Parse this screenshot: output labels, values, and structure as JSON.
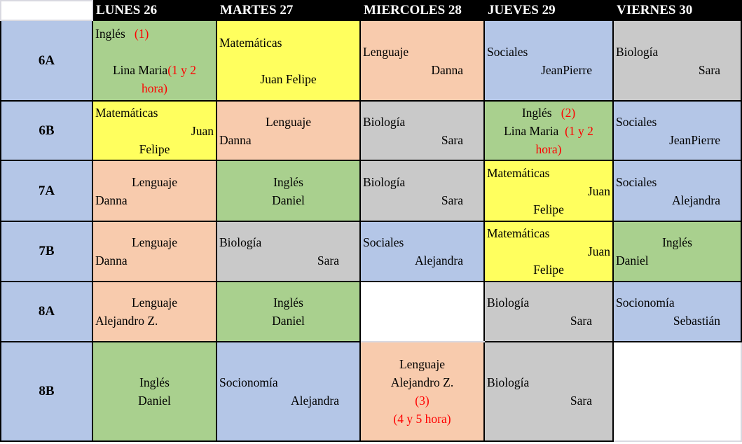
{
  "header": {
    "corner": "",
    "days": [
      "LUNES 26",
      "MARTES 27",
      "MIERCOLES 28",
      "JUEVES 29",
      "VIERNES 30"
    ]
  },
  "palette": {
    "header_bg": "#000000",
    "header_text": "#FFFFFF",
    "group_blue": "#B4C6E7",
    "green": "#A9D08E",
    "yellow": "#FFFF5E",
    "orange": "#F8CBAD",
    "gray": "#C9C9C9",
    "white": "#FFFFFF",
    "annotation_red": "#FF0000",
    "border": "#000000",
    "light_border": "#D9D9E1"
  },
  "subject_colors": {
    "Inglés": "green",
    "Matemáticas": "yellow",
    "Lenguaje": "orange",
    "Sociales": "blue",
    "Socionomía": "blue",
    "Biología": "gray"
  },
  "groups": [
    "6A",
    "6B",
    "7A",
    "7B",
    "8A",
    "8B"
  ],
  "rows": [
    {
      "group": "6A",
      "cells": [
        {
          "bg": "green",
          "lines": [
            {
              "align": "left",
              "runs": [
                {
                  "t": "Inglés"
                },
                {
                  "t": "   (1)",
                  "red": true
                }
              ]
            },
            {
              "align": "left",
              "runs": []
            },
            {
              "align": "center",
              "runs": [
                {
                  "t": "Lina Maria"
                },
                {
                  "t": "(1 y 2",
                  "red": true
                }
              ]
            },
            {
              "align": "center",
              "runs": [
                {
                  "t": "hora)",
                  "red": true
                }
              ]
            }
          ]
        },
        {
          "bg": "yellow",
          "lines": [
            {
              "align": "left",
              "runs": [
                {
                  "t": "Matemáticas"
                }
              ]
            },
            {
              "align": "left",
              "runs": []
            },
            {
              "align": "center",
              "runs": [
                {
                  "t": "Juan Felipe"
                }
              ]
            }
          ]
        },
        {
          "bg": "orange",
          "lines": [
            {
              "align": "left",
              "runs": [
                {
                  "t": "Lenguaje"
                }
              ]
            },
            {
              "align": "cright",
              "runs": [
                {
                  "t": "Danna"
                }
              ]
            }
          ]
        },
        {
          "bg": "blue",
          "lines": [
            {
              "align": "left",
              "runs": [
                {
                  "t": "Sociales"
                }
              ]
            },
            {
              "align": "cright",
              "runs": [
                {
                  "t": "JeanPierre"
                }
              ]
            }
          ]
        },
        {
          "bg": "gray",
          "lines": [
            {
              "align": "left",
              "runs": [
                {
                  "t": "Biología"
                }
              ]
            },
            {
              "align": "cright",
              "runs": [
                {
                  "t": "Sara"
                }
              ]
            }
          ]
        }
      ]
    },
    {
      "group": "6B",
      "cells": [
        {
          "bg": "yellow",
          "lines": [
            {
              "align": "left",
              "runs": [
                {
                  "t": "Matemáticas"
                }
              ]
            },
            {
              "align": "right",
              "runs": [
                {
                  "t": "Juan"
                }
              ]
            },
            {
              "align": "center",
              "runs": [
                {
                  "t": "Felipe"
                }
              ]
            }
          ]
        },
        {
          "bg": "orange",
          "lines": [
            {
              "align": "center",
              "runs": [
                {
                  "t": "Lenguaje"
                }
              ]
            },
            {
              "align": "left",
              "runs": [
                {
                  "t": "Danna"
                }
              ]
            }
          ]
        },
        {
          "bg": "gray",
          "lines": [
            {
              "align": "left",
              "runs": [
                {
                  "t": "Biología"
                }
              ]
            },
            {
              "align": "cright",
              "runs": [
                {
                  "t": "Sara"
                }
              ]
            }
          ]
        },
        {
          "bg": "green",
          "lines": [
            {
              "align": "center",
              "runs": [
                {
                  "t": "Inglés"
                },
                {
                  "t": "   (2)",
                  "red": true
                }
              ]
            },
            {
              "align": "center",
              "runs": [
                {
                  "t": "Lina Maria "
                },
                {
                  "t": " (1 y 2",
                  "red": true
                }
              ]
            },
            {
              "align": "center",
              "runs": [
                {
                  "t": "hora)",
                  "red": true
                }
              ]
            }
          ]
        },
        {
          "bg": "blue",
          "lines": [
            {
              "align": "left",
              "runs": [
                {
                  "t": "Sociales"
                }
              ]
            },
            {
              "align": "cright",
              "runs": [
                {
                  "t": "JeanPierre"
                }
              ]
            }
          ]
        }
      ]
    },
    {
      "group": "7A",
      "cells": [
        {
          "bg": "orange",
          "lines": [
            {
              "align": "center",
              "runs": [
                {
                  "t": "Lenguaje"
                }
              ]
            },
            {
              "align": "left",
              "runs": [
                {
                  "t": "Danna"
                }
              ]
            }
          ]
        },
        {
          "bg": "green",
          "lines": [
            {
              "align": "center",
              "runs": [
                {
                  "t": "Inglés"
                }
              ]
            },
            {
              "align": "center",
              "runs": [
                {
                  "t": "Daniel"
                }
              ]
            }
          ]
        },
        {
          "bg": "gray",
          "lines": [
            {
              "align": "left",
              "runs": [
                {
                  "t": "Biología"
                }
              ]
            },
            {
              "align": "cright",
              "runs": [
                {
                  "t": "Sara"
                }
              ]
            }
          ]
        },
        {
          "bg": "yellow",
          "lines": [
            {
              "align": "left",
              "runs": [
                {
                  "t": "Matemáticas"
                }
              ]
            },
            {
              "align": "right",
              "runs": [
                {
                  "t": "Juan"
                }
              ]
            },
            {
              "align": "center",
              "runs": [
                {
                  "t": "Felipe"
                }
              ]
            }
          ]
        },
        {
          "bg": "blue",
          "lines": [
            {
              "align": "left",
              "runs": [
                {
                  "t": "Sociales"
                }
              ]
            },
            {
              "align": "cright",
              "runs": [
                {
                  "t": "Alejandra"
                }
              ]
            }
          ]
        }
      ]
    },
    {
      "group": "7B",
      "cells": [
        {
          "bg": "orange",
          "lines": [
            {
              "align": "center",
              "runs": [
                {
                  "t": "Lenguaje"
                }
              ]
            },
            {
              "align": "left",
              "runs": [
                {
                  "t": "Danna"
                }
              ]
            }
          ]
        },
        {
          "bg": "gray",
          "lines": [
            {
              "align": "left",
              "runs": [
                {
                  "t": "Biología"
                }
              ]
            },
            {
              "align": "cright",
              "runs": [
                {
                  "t": "Sara"
                }
              ]
            }
          ]
        },
        {
          "bg": "blue",
          "lines": [
            {
              "align": "left",
              "runs": [
                {
                  "t": "Sociales"
                }
              ]
            },
            {
              "align": "cright",
              "runs": [
                {
                  "t": "Alejandra"
                }
              ]
            }
          ]
        },
        {
          "bg": "yellow",
          "lines": [
            {
              "align": "left",
              "runs": [
                {
                  "t": "Matemáticas"
                }
              ]
            },
            {
              "align": "right",
              "runs": [
                {
                  "t": "Juan"
                }
              ]
            },
            {
              "align": "center",
              "runs": [
                {
                  "t": "Felipe"
                }
              ]
            }
          ]
        },
        {
          "bg": "green",
          "lines": [
            {
              "align": "center",
              "runs": [
                {
                  "t": "Inglés"
                }
              ]
            },
            {
              "align": "left",
              "runs": [
                {
                  "t": "Daniel"
                }
              ]
            }
          ]
        }
      ]
    },
    {
      "group": "8A",
      "cells": [
        {
          "bg": "orange",
          "lines": [
            {
              "align": "center",
              "runs": [
                {
                  "t": "Lenguaje"
                }
              ]
            },
            {
              "align": "left",
              "runs": [
                {
                  "t": "Alejandro Z."
                }
              ]
            }
          ]
        },
        {
          "bg": "green",
          "lines": [
            {
              "align": "center",
              "runs": [
                {
                  "t": "Inglés"
                }
              ]
            },
            {
              "align": "center",
              "runs": [
                {
                  "t": "Daniel"
                }
              ]
            }
          ]
        },
        {
          "bg": "white",
          "lines": []
        },
        {
          "bg": "gray",
          "lines": [
            {
              "align": "left",
              "runs": [
                {
                  "t": "Biología"
                }
              ]
            },
            {
              "align": "cright",
              "runs": [
                {
                  "t": "Sara"
                }
              ]
            }
          ]
        },
        {
          "bg": "blue",
          "lines": [
            {
              "align": "left",
              "runs": [
                {
                  "t": "Socionomía"
                }
              ]
            },
            {
              "align": "cright",
              "runs": [
                {
                  "t": "Sebastián"
                }
              ]
            }
          ]
        }
      ]
    },
    {
      "group": "8B",
      "cells": [
        {
          "bg": "green",
          "lines": [
            {
              "align": "center",
              "runs": [
                {
                  "t": "Inglés"
                }
              ]
            },
            {
              "align": "center",
              "runs": [
                {
                  "t": "Daniel"
                }
              ]
            }
          ]
        },
        {
          "bg": "blue",
          "lines": [
            {
              "align": "left",
              "runs": [
                {
                  "t": "Socionomía"
                }
              ]
            },
            {
              "align": "cright",
              "runs": [
                {
                  "t": "Alejandra"
                }
              ]
            }
          ]
        },
        {
          "bg": "orange",
          "lines": [
            {
              "align": "center",
              "runs": [
                {
                  "t": "Lenguaje"
                }
              ]
            },
            {
              "align": "center",
              "runs": [
                {
                  "t": "Alejandro Z."
                }
              ]
            },
            {
              "align": "center",
              "runs": [
                {
                  "t": "(3)",
                  "red": true
                }
              ]
            },
            {
              "align": "center",
              "runs": [
                {
                  "t": "(4 y 5 hora)",
                  "red": true
                }
              ]
            }
          ]
        },
        {
          "bg": "gray",
          "lines": [
            {
              "align": "left",
              "runs": [
                {
                  "t": "Biología"
                }
              ]
            },
            {
              "align": "cright",
              "runs": [
                {
                  "t": "Sara"
                }
              ]
            }
          ]
        },
        {
          "bg": "white",
          "lines": []
        }
      ]
    }
  ]
}
